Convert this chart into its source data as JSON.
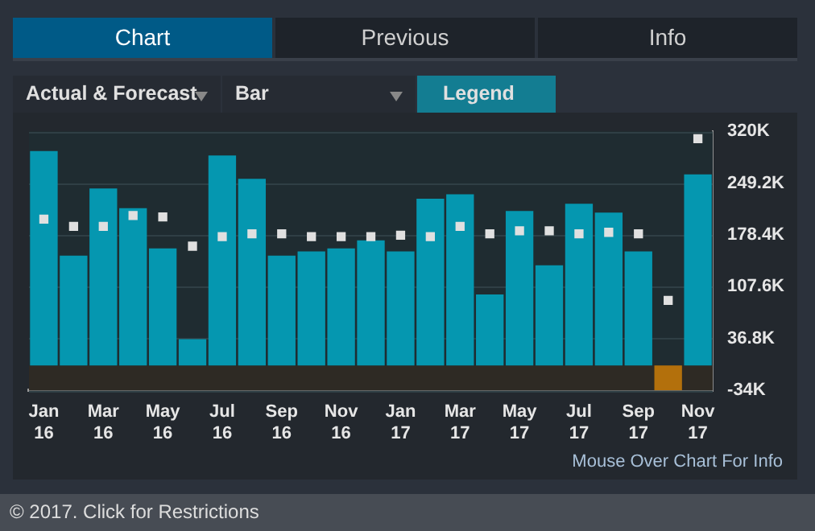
{
  "chart_data": {
    "type": "bar",
    "categories": [
      "Jan 16",
      null,
      "Mar 16",
      null,
      "May 16",
      null,
      "Jul 16",
      null,
      "Sep 16",
      null,
      "Nov 16",
      null,
      "Jan 17",
      null,
      "Mar 17",
      null,
      "May 17",
      null,
      "Jul 17",
      null,
      "Sep 17",
      null,
      "Nov 17"
    ],
    "series": [
      {
        "colors": [
          "#0597b0",
          "#0597b0",
          "#0597b0",
          "#0597b0",
          "#0597b0",
          "#0597b0",
          "#0597b0",
          "#0597b0",
          "#0597b0",
          "#0597b0",
          "#0597b0",
          "#0597b0",
          "#0597b0",
          "#0597b0",
          "#0597b0",
          "#0597b0",
          "#0597b0",
          "#0597b0",
          "#0597b0",
          "#0597b0",
          "#0597b0",
          "#b3700c",
          "#0597b0"
        ],
        "values": [
          293,
          150,
          242,
          215,
          160,
          36,
          287,
          255,
          150,
          156,
          160,
          171,
          156,
          228,
          234,
          97,
          211,
          137,
          221,
          209,
          156,
          -34,
          261
        ]
      },
      {
        "type": "scatter",
        "color": "#e0e0e0",
        "values": [
          200,
          190,
          190,
          205,
          203,
          163,
          176,
          180,
          180,
          176,
          176,
          176,
          178,
          176,
          190,
          180,
          184,
          184,
          180,
          182,
          180,
          89,
          310
        ]
      }
    ],
    "ylim": [
      -34,
      320
    ],
    "yticks": [
      {
        "value": -34,
        "label": "-34K"
      },
      {
        "value": 36.8,
        "label": "36.8K"
      },
      {
        "value": 107.6,
        "label": "107.6K"
      },
      {
        "value": 178.4,
        "label": "178.4K"
      },
      {
        "value": 249.2,
        "label": "249.2K"
      },
      {
        "value": 320,
        "label": "320K"
      }
    ],
    "grid": "y",
    "marker": "square",
    "bands": [
      {
        "axis": "y",
        "from": -34,
        "to": 0,
        "color": "#2e2a24"
      }
    ],
    "annotations": [
      "Chart",
      "Previous",
      "Info",
      "Actual & Forecast",
      "Bar",
      "Legend",
      "Mouse Over Chart For Info",
      "© 2017. Click for Restrictions"
    ]
  }
}
